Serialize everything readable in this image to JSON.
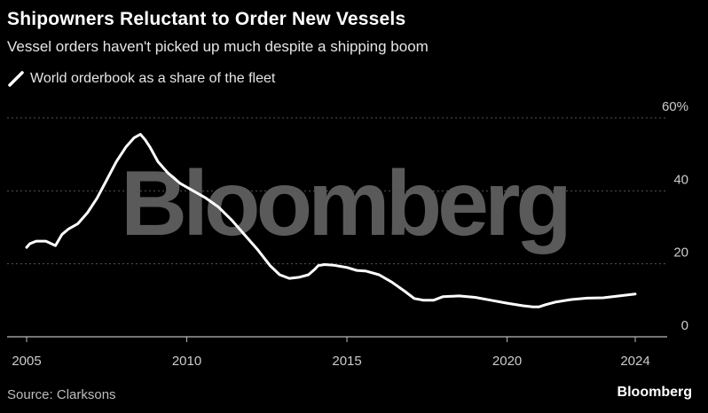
{
  "header": {
    "title": "Shipowners Reluctant to Order New Vessels",
    "subtitle": "Vessel orders haven't picked up much despite a shipping boom"
  },
  "footer": {
    "source": "Source: Clarksons",
    "brand": "Bloomberg"
  },
  "watermark": "Bloomberg",
  "colors": {
    "background": "#000000",
    "line": "#ffffff",
    "grid": "#555555",
    "tick_text": "#cccccc",
    "watermark": "#5a5a5a"
  },
  "chart_data": {
    "type": "line",
    "title": "Shipowners Reluctant to Order New Vessels",
    "subtitle": "Vessel orders haven't picked up much despite a shipping boom",
    "ylim": [
      0,
      60
    ],
    "xlim": [
      2005,
      2025
    ],
    "y_ticks": [
      0,
      20,
      40,
      60
    ],
    "y_tick_labels": [
      "0",
      "20",
      "40",
      "60%"
    ],
    "x_ticks": [
      2005,
      2010,
      2015,
      2020,
      2024
    ],
    "x_tick_labels": [
      "2005",
      "2010",
      "2015",
      "2020",
      "2024"
    ],
    "grid": "horizontal dotted",
    "y_axis_side": "right",
    "legend": "top-left",
    "series": [
      {
        "name": "World orderbook as a share of the fleet",
        "color": "#ffffff",
        "x": [
          2005.0,
          2005.1,
          2005.3,
          2005.6,
          2005.9,
          2006.1,
          2006.3,
          2006.6,
          2006.9,
          2007.2,
          2007.5,
          2007.8,
          2008.1,
          2008.35,
          2008.55,
          2008.7,
          2008.85,
          2009.1,
          2009.4,
          2009.8,
          2010.2,
          2010.6,
          2011.0,
          2011.4,
          2011.8,
          2012.2,
          2012.6,
          2012.9,
          2013.2,
          2013.5,
          2013.8,
          2014.0,
          2014.1,
          2014.3,
          2014.6,
          2015.0,
          2015.3,
          2015.6,
          2016.0,
          2016.4,
          2016.8,
          2017.1,
          2017.4,
          2017.7,
          2018.0,
          2018.5,
          2019.0,
          2019.5,
          2020.0,
          2020.5,
          2020.8,
          2021.0,
          2021.2,
          2021.5,
          2022.0,
          2022.5,
          2023.0,
          2023.5,
          2024.0
        ],
        "values": [
          24.5,
          25.5,
          26.2,
          26.2,
          25.0,
          28.0,
          29.5,
          31.0,
          34.0,
          38.0,
          43.0,
          48.0,
          52.0,
          54.5,
          55.5,
          54.0,
          52.0,
          48.0,
          45.0,
          42.0,
          40.0,
          38.0,
          35.5,
          32.0,
          28.0,
          24.0,
          19.5,
          17.0,
          16.0,
          16.3,
          17.0,
          18.5,
          19.5,
          19.8,
          19.6,
          19.0,
          18.2,
          18.0,
          17.0,
          15.0,
          12.5,
          10.5,
          10.0,
          10.0,
          11.0,
          11.2,
          10.8,
          10.0,
          9.2,
          8.5,
          8.2,
          8.2,
          8.8,
          9.5,
          10.2,
          10.6,
          10.7,
          11.2,
          11.7
        ]
      }
    ]
  }
}
